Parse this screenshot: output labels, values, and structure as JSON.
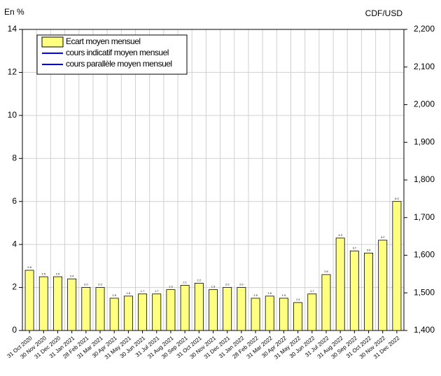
{
  "chart_data": {
    "type": "bar",
    "y_label": "En %",
    "y2_label": "CDF/USD",
    "categories": [
      "31 Oct 2020",
      "30 Nov 2020",
      "31 Dec 2020",
      "31 Jan 2021",
      "28 Feb 2021",
      "31 Mar 2021",
      "30 Apr 2021",
      "31 May 2021",
      "30 Jun 2021",
      "31 Jul 2021",
      "31 Aug 2021",
      "30 Sep 2021",
      "31 Oct 2021",
      "30 Nov 2021",
      "31 Dec 2021",
      "31 Jan 2022",
      "28 Feb 2022",
      "31 Mar 2022",
      "30 Apr 2022",
      "31 May 2022",
      "30 Jun 2022",
      "31 Jul 2022",
      "31 Aug 2022",
      "30 Sep 2022",
      "31 Oct 2022",
      "30 Nov 2022",
      "31 Dec 2022"
    ],
    "series": [
      {
        "name": "Ecart moyen mensuel",
        "color": "#ffff80",
        "values": [
          2.8,
          2.5,
          2.5,
          2.4,
          2,
          2,
          1.5,
          1.6,
          1.7,
          1.7,
          1.9,
          2.1,
          2.2,
          1.9,
          2,
          2,
          1.5,
          1.6,
          1.5,
          1.3,
          1.7,
          2.6,
          4.3,
          3.7,
          3.6,
          4.2,
          6
        ],
        "value_labels": [
          "2.8",
          "2.5",
          "2.5",
          "2.4",
          "2.0",
          "2.0",
          "1.5",
          "1.6",
          "1.7",
          "1.7",
          "1.9",
          "2.1",
          "2.2",
          "1.9",
          "2.0",
          "2.0",
          "1.5",
          "1.6",
          "1.5",
          "1.3",
          "1.7",
          "2.6",
          "4.3",
          "3.7",
          "3.6",
          "4.2",
          "6.0"
        ]
      },
      {
        "name": "cours indicatif moyen mensuel",
        "color": "#0000ff",
        "axis": "y2",
        "values": [
          null,
          null,
          null,
          null,
          null,
          null,
          null,
          null,
          null,
          null,
          null,
          null,
          null,
          null,
          null,
          null,
          null,
          null,
          null,
          null,
          null,
          null,
          null,
          null,
          null,
          null,
          null
        ]
      },
      {
        "name": "cours parallèle moyen mensuel",
        "color": "#0000ff",
        "axis": "y2",
        "values": [
          null,
          null,
          null,
          null,
          null,
          null,
          null,
          null,
          null,
          null,
          null,
          null,
          null,
          null,
          null,
          null,
          null,
          null,
          null,
          null,
          null,
          null,
          null,
          null,
          null,
          null,
          null
        ]
      }
    ],
    "ylim": [
      0,
      14
    ],
    "yticks": [
      0,
      2,
      4,
      6,
      8,
      10,
      12,
      14
    ],
    "y2lim": [
      1400,
      2200
    ],
    "y2ticks": [
      {
        "value": 1400,
        "label": "1,400"
      },
      {
        "value": 1500,
        "label": "1,500"
      },
      {
        "value": 1600,
        "label": "1,600"
      },
      {
        "value": 1700,
        "label": "1,700"
      },
      {
        "value": 1800,
        "label": "1,800"
      },
      {
        "value": 1900,
        "label": "1,900"
      },
      {
        "value": 2000,
        "label": "2,000"
      },
      {
        "value": 2100,
        "label": "2,100"
      },
      {
        "value": 2200,
        "label": "2,200"
      }
    ],
    "grid": true,
    "legend": "upper left"
  }
}
